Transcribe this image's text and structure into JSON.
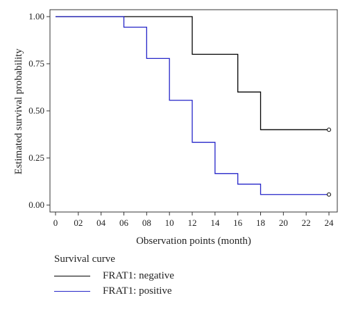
{
  "chart_data": {
    "type": "line",
    "step": true,
    "x_ticks": [
      "0",
      "02",
      "04",
      "06",
      "08",
      "10",
      "12",
      "14",
      "16",
      "18",
      "20",
      "22",
      "24"
    ],
    "y_ticks": [
      "0.00",
      "0.25",
      "0.50",
      "0.75",
      "1.00"
    ],
    "xlabel": "Observation points (month)",
    "ylabel": "Estimated survival probability",
    "xlim": [
      0,
      24
    ],
    "ylim": [
      0,
      1
    ],
    "grid": false,
    "legend_title": "Survival curve",
    "legend_position": "bottom-left",
    "series": [
      {
        "name": "FRAT1: negative",
        "color": "#000000",
        "x": [
          0,
          12,
          16,
          18,
          24
        ],
        "y": [
          1.0,
          0.8,
          0.6,
          0.4,
          0.4
        ],
        "censored_end": true
      },
      {
        "name": "FRAT1: positive",
        "color": "#2323c8",
        "x": [
          0,
          6,
          8,
          10,
          12,
          14,
          16,
          18,
          24
        ],
        "y": [
          1.0,
          0.944,
          0.778,
          0.556,
          0.333,
          0.167,
          0.111,
          0.056,
          0.056
        ],
        "censored_end": true
      }
    ]
  }
}
